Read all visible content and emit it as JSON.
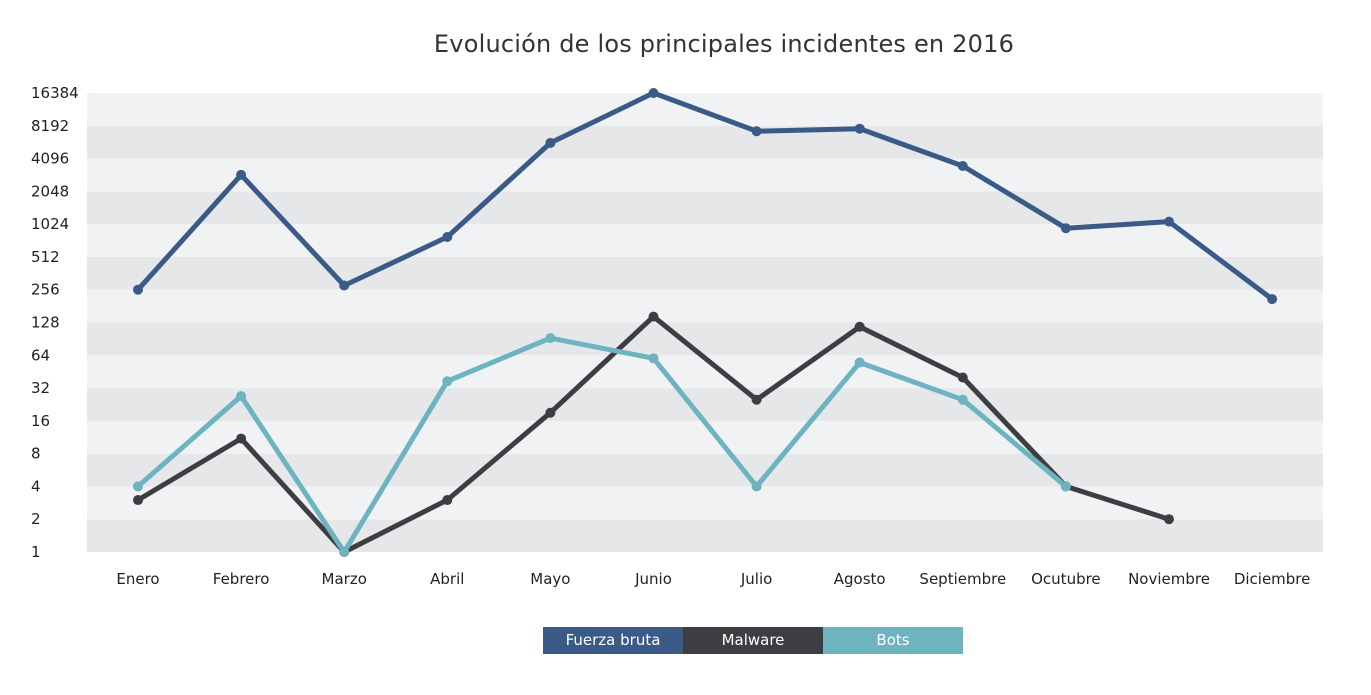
{
  "chart_data": {
    "type": "line",
    "title": "Evolución de los principales incidentes en 2016",
    "y_scale": "log2",
    "ylim": [
      1,
      16384
    ],
    "y_ticks": [
      "1",
      "2",
      "4",
      "8",
      "16",
      "32",
      "64",
      "128",
      "256",
      "512",
      "1024",
      "2048",
      "4096",
      "8192",
      "16384"
    ],
    "categories": [
      "Enero",
      "Febrero",
      "Marzo",
      "Abril",
      "Mayo",
      "Junio",
      "Julio",
      "Agosto",
      "Septiembre",
      "Ocutubre",
      "Noviembre",
      "Diciembre"
    ],
    "series": [
      {
        "name": "Fuerza bruta",
        "color": "#3a5a87",
        "values": [
          256,
          2900,
          280,
          780,
          5700,
          16384,
          7300,
          7700,
          3500,
          940,
          1080,
          210
        ]
      },
      {
        "name": "Malware",
        "color": "#3d3e42",
        "values": [
          3,
          11,
          1,
          3,
          19,
          145,
          25,
          117,
          40,
          4,
          2,
          null
        ]
      },
      {
        "name": "Bots",
        "color": "#6db3c0",
        "values": [
          4,
          27,
          1,
          37,
          92,
          60,
          4,
          55,
          25,
          4,
          null,
          null
        ]
      }
    ],
    "grid": "alternating horizontal bands",
    "legend": "bottom-center"
  }
}
